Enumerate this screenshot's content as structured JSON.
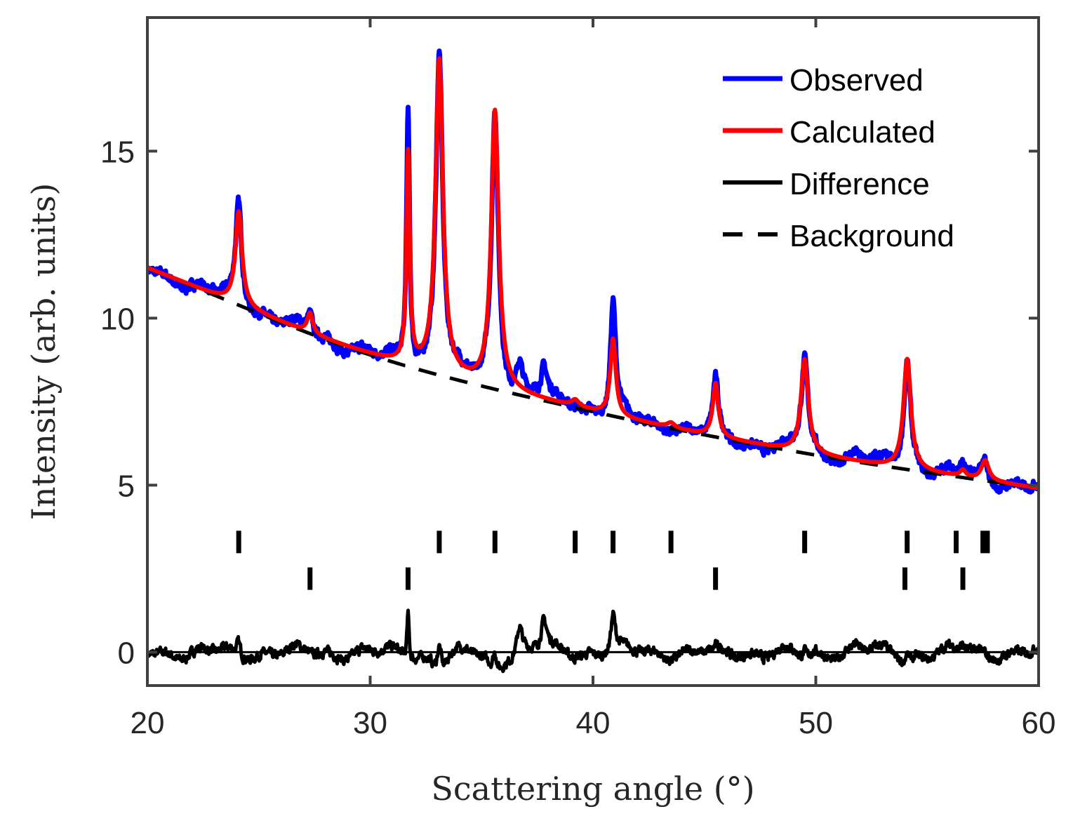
{
  "chart_data": {
    "type": "line",
    "xlabel": "Scattering angle (°)",
    "ylabel": "Intensity (arb. units)",
    "xlim": [
      20,
      60
    ],
    "ylim": [
      -1,
      19
    ],
    "xticks": [
      20,
      30,
      40,
      50,
      60
    ],
    "yticks": [
      0,
      5,
      10,
      15
    ],
    "legend_position": "top-right",
    "colors": {
      "observed": "#0000ff",
      "calculated": "#ff0000",
      "difference": "#000000",
      "background": "#000000",
      "axes": "#404040"
    },
    "background_model": {
      "at_20": 11.5,
      "at_30": 8.9,
      "at_40": 7.2,
      "at_50": 5.9,
      "at_60": 4.9
    },
    "peaks": [
      {
        "position": 24.1,
        "calculated_height": 2.8,
        "observed_excess": 0.3,
        "width": 0.18
      },
      {
        "position": 27.3,
        "calculated_height": 0.6,
        "observed_excess": 0.0,
        "width": 0.15
      },
      {
        "position": 31.7,
        "calculated_height": 6.3,
        "observed_excess": 1.3,
        "width": 0.09
      },
      {
        "position": 33.1,
        "calculated_height": 9.4,
        "observed_excess": 0.3,
        "width": 0.2
      },
      {
        "position": 35.6,
        "calculated_height": 8.3,
        "observed_excess": 0.0,
        "width": 0.2
      },
      {
        "position": 36.7,
        "calculated_height": 0.0,
        "observed_excess": 0.8,
        "width": 0.15
      },
      {
        "position": 37.8,
        "calculated_height": 0.0,
        "observed_excess": 0.9,
        "width": 0.18
      },
      {
        "position": 39.2,
        "calculated_height": 0.2,
        "observed_excess": 0.0,
        "width": 0.2
      },
      {
        "position": 40.9,
        "calculated_height": 2.3,
        "observed_excess": 1.1,
        "width": 0.15
      },
      {
        "position": 43.5,
        "calculated_height": 0.15,
        "observed_excess": 0.0,
        "width": 0.2
      },
      {
        "position": 45.5,
        "calculated_height": 1.6,
        "observed_excess": 0.0,
        "width": 0.15
      },
      {
        "position": 49.5,
        "calculated_height": 2.8,
        "observed_excess": 0.0,
        "width": 0.2
      },
      {
        "position": 51.8,
        "calculated_height": 0.0,
        "observed_excess": 0.2,
        "width": 0.3
      },
      {
        "position": 54.1,
        "calculated_height": 3.3,
        "observed_excess": 0.0,
        "width": 0.2
      },
      {
        "position": 56.6,
        "calculated_height": 0.2,
        "observed_excess": 0.2,
        "width": 0.15
      },
      {
        "position": 57.6,
        "calculated_height": 0.6,
        "observed_excess": 0.0,
        "width": 0.2
      }
    ],
    "reflection_markers": [
      {
        "phase": 1,
        "y": 3.3,
        "positions": [
          24.1,
          33.1,
          35.6,
          39.2,
          40.9,
          43.5,
          49.5,
          54.1,
          56.3,
          57.5,
          57.7
        ]
      },
      {
        "phase": 2,
        "y": 2.2,
        "positions": [
          27.3,
          31.7,
          45.5,
          54.0,
          56.6
        ]
      }
    ],
    "series": [
      {
        "name": "Observed",
        "key": "observed",
        "style": "solid"
      },
      {
        "name": "Calculated",
        "key": "calculated",
        "style": "solid"
      },
      {
        "name": "Difference",
        "key": "difference",
        "style": "solid"
      },
      {
        "name": "Background",
        "key": "background",
        "style": "dashed"
      }
    ]
  }
}
